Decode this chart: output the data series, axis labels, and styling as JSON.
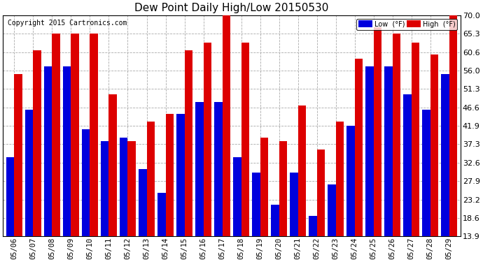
{
  "title": "Dew Point Daily High/Low 20150530",
  "copyright": "Copyright 2015 Cartronics.com",
  "dates": [
    "05/06",
    "05/07",
    "05/08",
    "05/09",
    "05/10",
    "05/11",
    "05/12",
    "05/13",
    "05/14",
    "05/15",
    "05/16",
    "05/17",
    "05/18",
    "05/19",
    "05/20",
    "05/21",
    "05/22",
    "05/23",
    "05/24",
    "05/25",
    "05/26",
    "05/27",
    "05/28",
    "05/29"
  ],
  "low": [
    34.0,
    46.0,
    57.0,
    57.0,
    41.0,
    38.0,
    39.0,
    31.0,
    25.0,
    45.0,
    48.0,
    48.0,
    34.0,
    30.0,
    22.0,
    30.0,
    19.0,
    27.0,
    42.0,
    57.0,
    57.0,
    50.0,
    46.0,
    55.0
  ],
  "high": [
    55.0,
    61.0,
    65.3,
    65.3,
    65.3,
    50.0,
    38.0,
    43.0,
    45.0,
    61.0,
    63.0,
    70.0,
    63.0,
    39.0,
    38.0,
    47.0,
    36.0,
    43.0,
    59.0,
    67.0,
    65.3,
    63.0,
    60.0,
    70.0
  ],
  "y_ticks": [
    13.9,
    18.6,
    23.2,
    27.9,
    32.6,
    37.3,
    41.9,
    46.6,
    51.3,
    56.0,
    60.6,
    65.3,
    70.0
  ],
  "y_min": 13.9,
  "y_max": 70.0,
  "low_color": "#0000dd",
  "high_color": "#dd0000",
  "bg_color": "#ffffff",
  "grid_color": "#aaaaaa",
  "bar_width": 0.42
}
